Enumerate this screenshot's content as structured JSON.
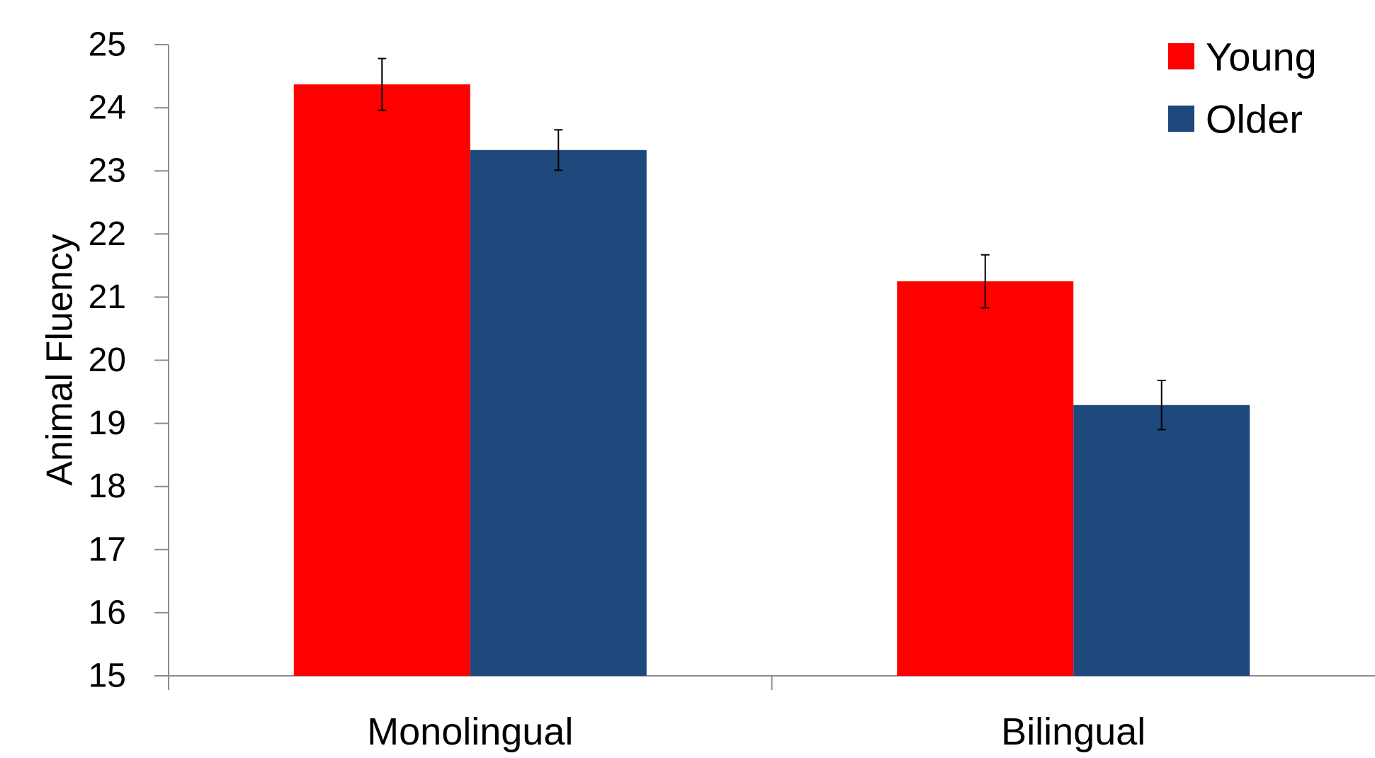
{
  "chart_data": {
    "type": "bar",
    "title": "",
    "xlabel": "",
    "ylabel": "Animal Fluency",
    "ylim": [
      15,
      25
    ],
    "yticks": [
      "15",
      "16",
      "17",
      "18",
      "19",
      "20",
      "21",
      "22",
      "23",
      "24",
      "25"
    ],
    "categories": [
      "Monolingual",
      "Bilingual"
    ],
    "series": [
      {
        "name": "Young",
        "color": "#ff0000",
        "values": [
          24.37,
          21.25
        ],
        "error": [
          0.41,
          0.42
        ]
      },
      {
        "name": "Older",
        "color": "#1f497d",
        "values": [
          23.33,
          19.29
        ],
        "error": [
          0.32,
          0.39
        ]
      }
    ],
    "legend": "top-right",
    "grid": false
  }
}
